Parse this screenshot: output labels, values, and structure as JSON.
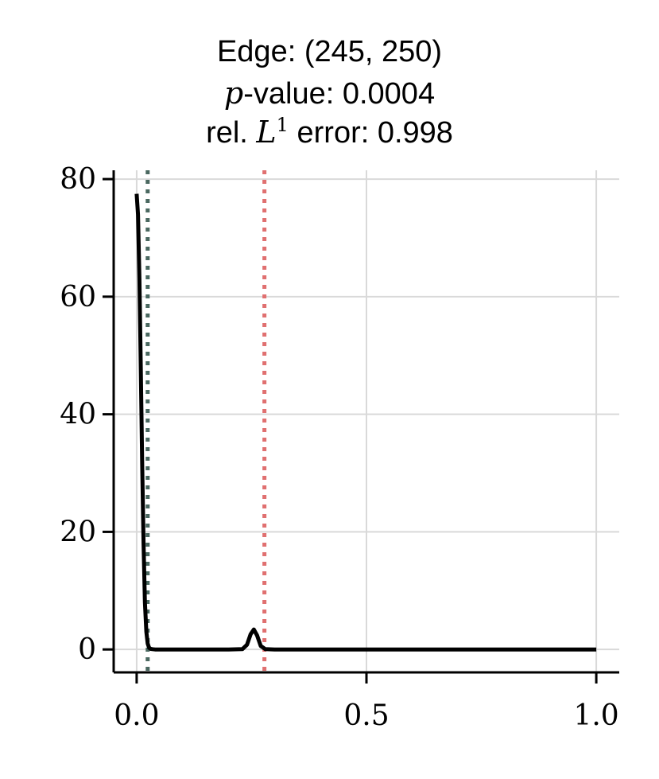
{
  "title": {
    "line1": "Edge: (245, 250)",
    "line2_math": "p",
    "line2_rest": "-value: 0.0004",
    "line3_prefix": "rel. ",
    "line3_math": "L",
    "line3_sup": "1",
    "line3_rest": " error: 0.998"
  },
  "chart_data": {
    "type": "line",
    "title": "Edge: (245, 250) p-value: 0.0004 rel. L1 error: 0.998",
    "xlabel": "",
    "ylabel": "",
    "xlim": [
      -0.05,
      1.05
    ],
    "ylim": [
      -3.9,
      81.5
    ],
    "xticks": [
      0.0,
      0.5,
      1.0
    ],
    "xtick_labels": [
      "0.0",
      "0.5",
      "1.0"
    ],
    "yticks": [
      0,
      20,
      40,
      60,
      80
    ],
    "ytick_labels": [
      "0",
      "20",
      "40",
      "60",
      "80"
    ],
    "grid": true,
    "series": [
      {
        "color": "#000000",
        "style": "solid",
        "x": [
          0.0,
          0.003,
          0.006,
          0.009,
          0.012,
          0.015,
          0.018,
          0.021,
          0.024,
          0.027,
          0.03,
          0.034,
          0.04,
          0.06,
          0.1,
          0.2,
          0.23,
          0.24,
          0.248,
          0.255,
          0.262,
          0.27,
          0.28,
          0.3,
          0.5,
          0.8,
          1.0
        ],
        "y": [
          77.5,
          74.0,
          63.0,
          48.0,
          32.0,
          18.0,
          8.0,
          3.0,
          1.0,
          0.3,
          0.1,
          0.05,
          0.0,
          0.0,
          0.0,
          0.0,
          0.05,
          0.8,
          2.6,
          3.4,
          2.4,
          0.6,
          0.05,
          0.0,
          0.0,
          0.0,
          0.0
        ]
      }
    ],
    "vlines": [
      {
        "x": 0.024,
        "color": "#4a6860",
        "style": "dotted"
      },
      {
        "x": 0.278,
        "color": "#e07070",
        "style": "dotted"
      }
    ]
  }
}
